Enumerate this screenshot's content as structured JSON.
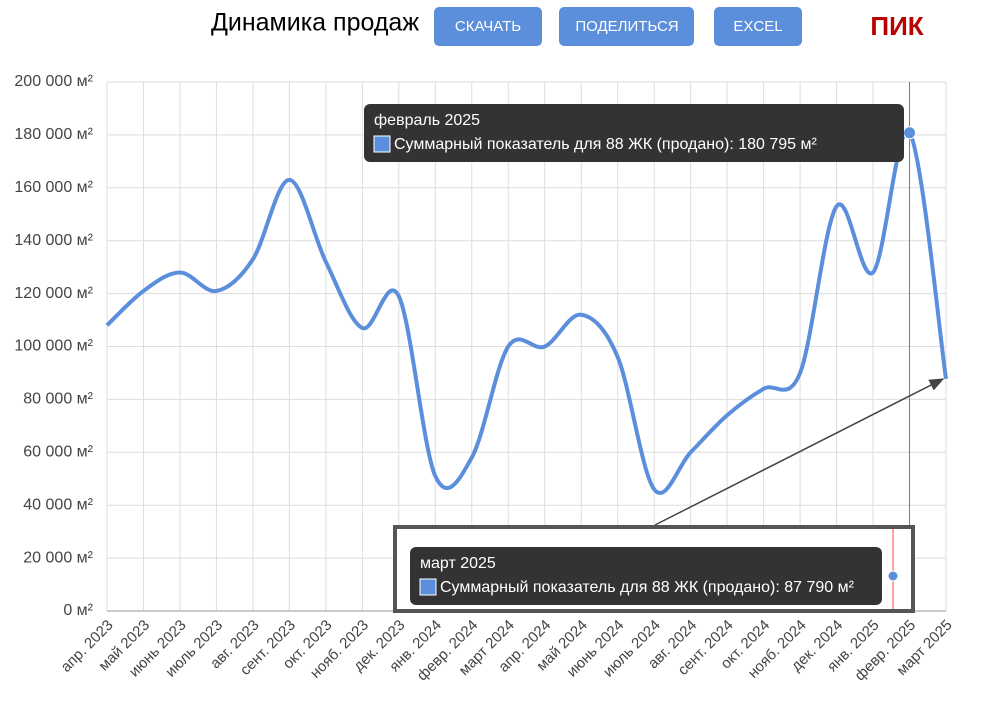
{
  "header": {
    "title": "Динамика продаж",
    "buttons": [
      "СКАЧАТЬ",
      "ПОДЕЛИТЬСЯ",
      "EXCEL"
    ],
    "brand": "ПИК"
  },
  "chart_data": {
    "type": "line",
    "categories": [
      "апр. 2023",
      "май 2023",
      "июнь 2023",
      "июль 2023",
      "авг. 2023",
      "сент. 2023",
      "окт. 2023",
      "нояб. 2023",
      "дек. 2023",
      "янв. 2024",
      "февр. 2024",
      "март 2024",
      "апр. 2024",
      "май 2024",
      "июнь 2024",
      "июль 2024",
      "авг. 2024",
      "сент. 2024",
      "окт. 2024",
      "нояб. 2024",
      "дек. 2024",
      "янв. 2025",
      "февр. 2025",
      "март 2025"
    ],
    "series": [
      {
        "name": "Суммарный показатель для 88 ЖК (продано)",
        "color": "#5b8fdc",
        "values": [
          108000,
          121000,
          128000,
          121000,
          133000,
          163000,
          132000,
          107000,
          119000,
          51000,
          58000,
          100000,
          100000,
          112000,
          96000,
          46000,
          60000,
          74000,
          84000,
          90000,
          153000,
          128000,
          180795,
          87790
        ]
      }
    ],
    "ylim": [
      0,
      200000
    ],
    "yticks": [
      {
        "value": 0,
        "label": "0 м²"
      },
      {
        "value": 20000,
        "label": "20 000 м²"
      },
      {
        "value": 40000,
        "label": "40 000 м²"
      },
      {
        "value": 60000,
        "label": "60 000 м²"
      },
      {
        "value": 80000,
        "label": "80 000 м²"
      },
      {
        "value": 100000,
        "label": "100 000 м²"
      },
      {
        "value": 120000,
        "label": "120 000 м²"
      },
      {
        "value": 140000,
        "label": "140 000 м²"
      },
      {
        "value": 160000,
        "label": "160 000 м²"
      },
      {
        "value": 180000,
        "label": "180 000 м²"
      },
      {
        "value": 200000,
        "label": "200 000 м²"
      }
    ],
    "grid": true,
    "tooltips": [
      {
        "index": 22,
        "title": "февраль 2025",
        "text": "Суммарный показатель для 88 ЖК (продано): 180 795 м²"
      },
      {
        "index": 23,
        "title": "март 2025",
        "text": "Суммарный показатель для 88 ЖК (продано): 87 790 м²"
      }
    ]
  }
}
